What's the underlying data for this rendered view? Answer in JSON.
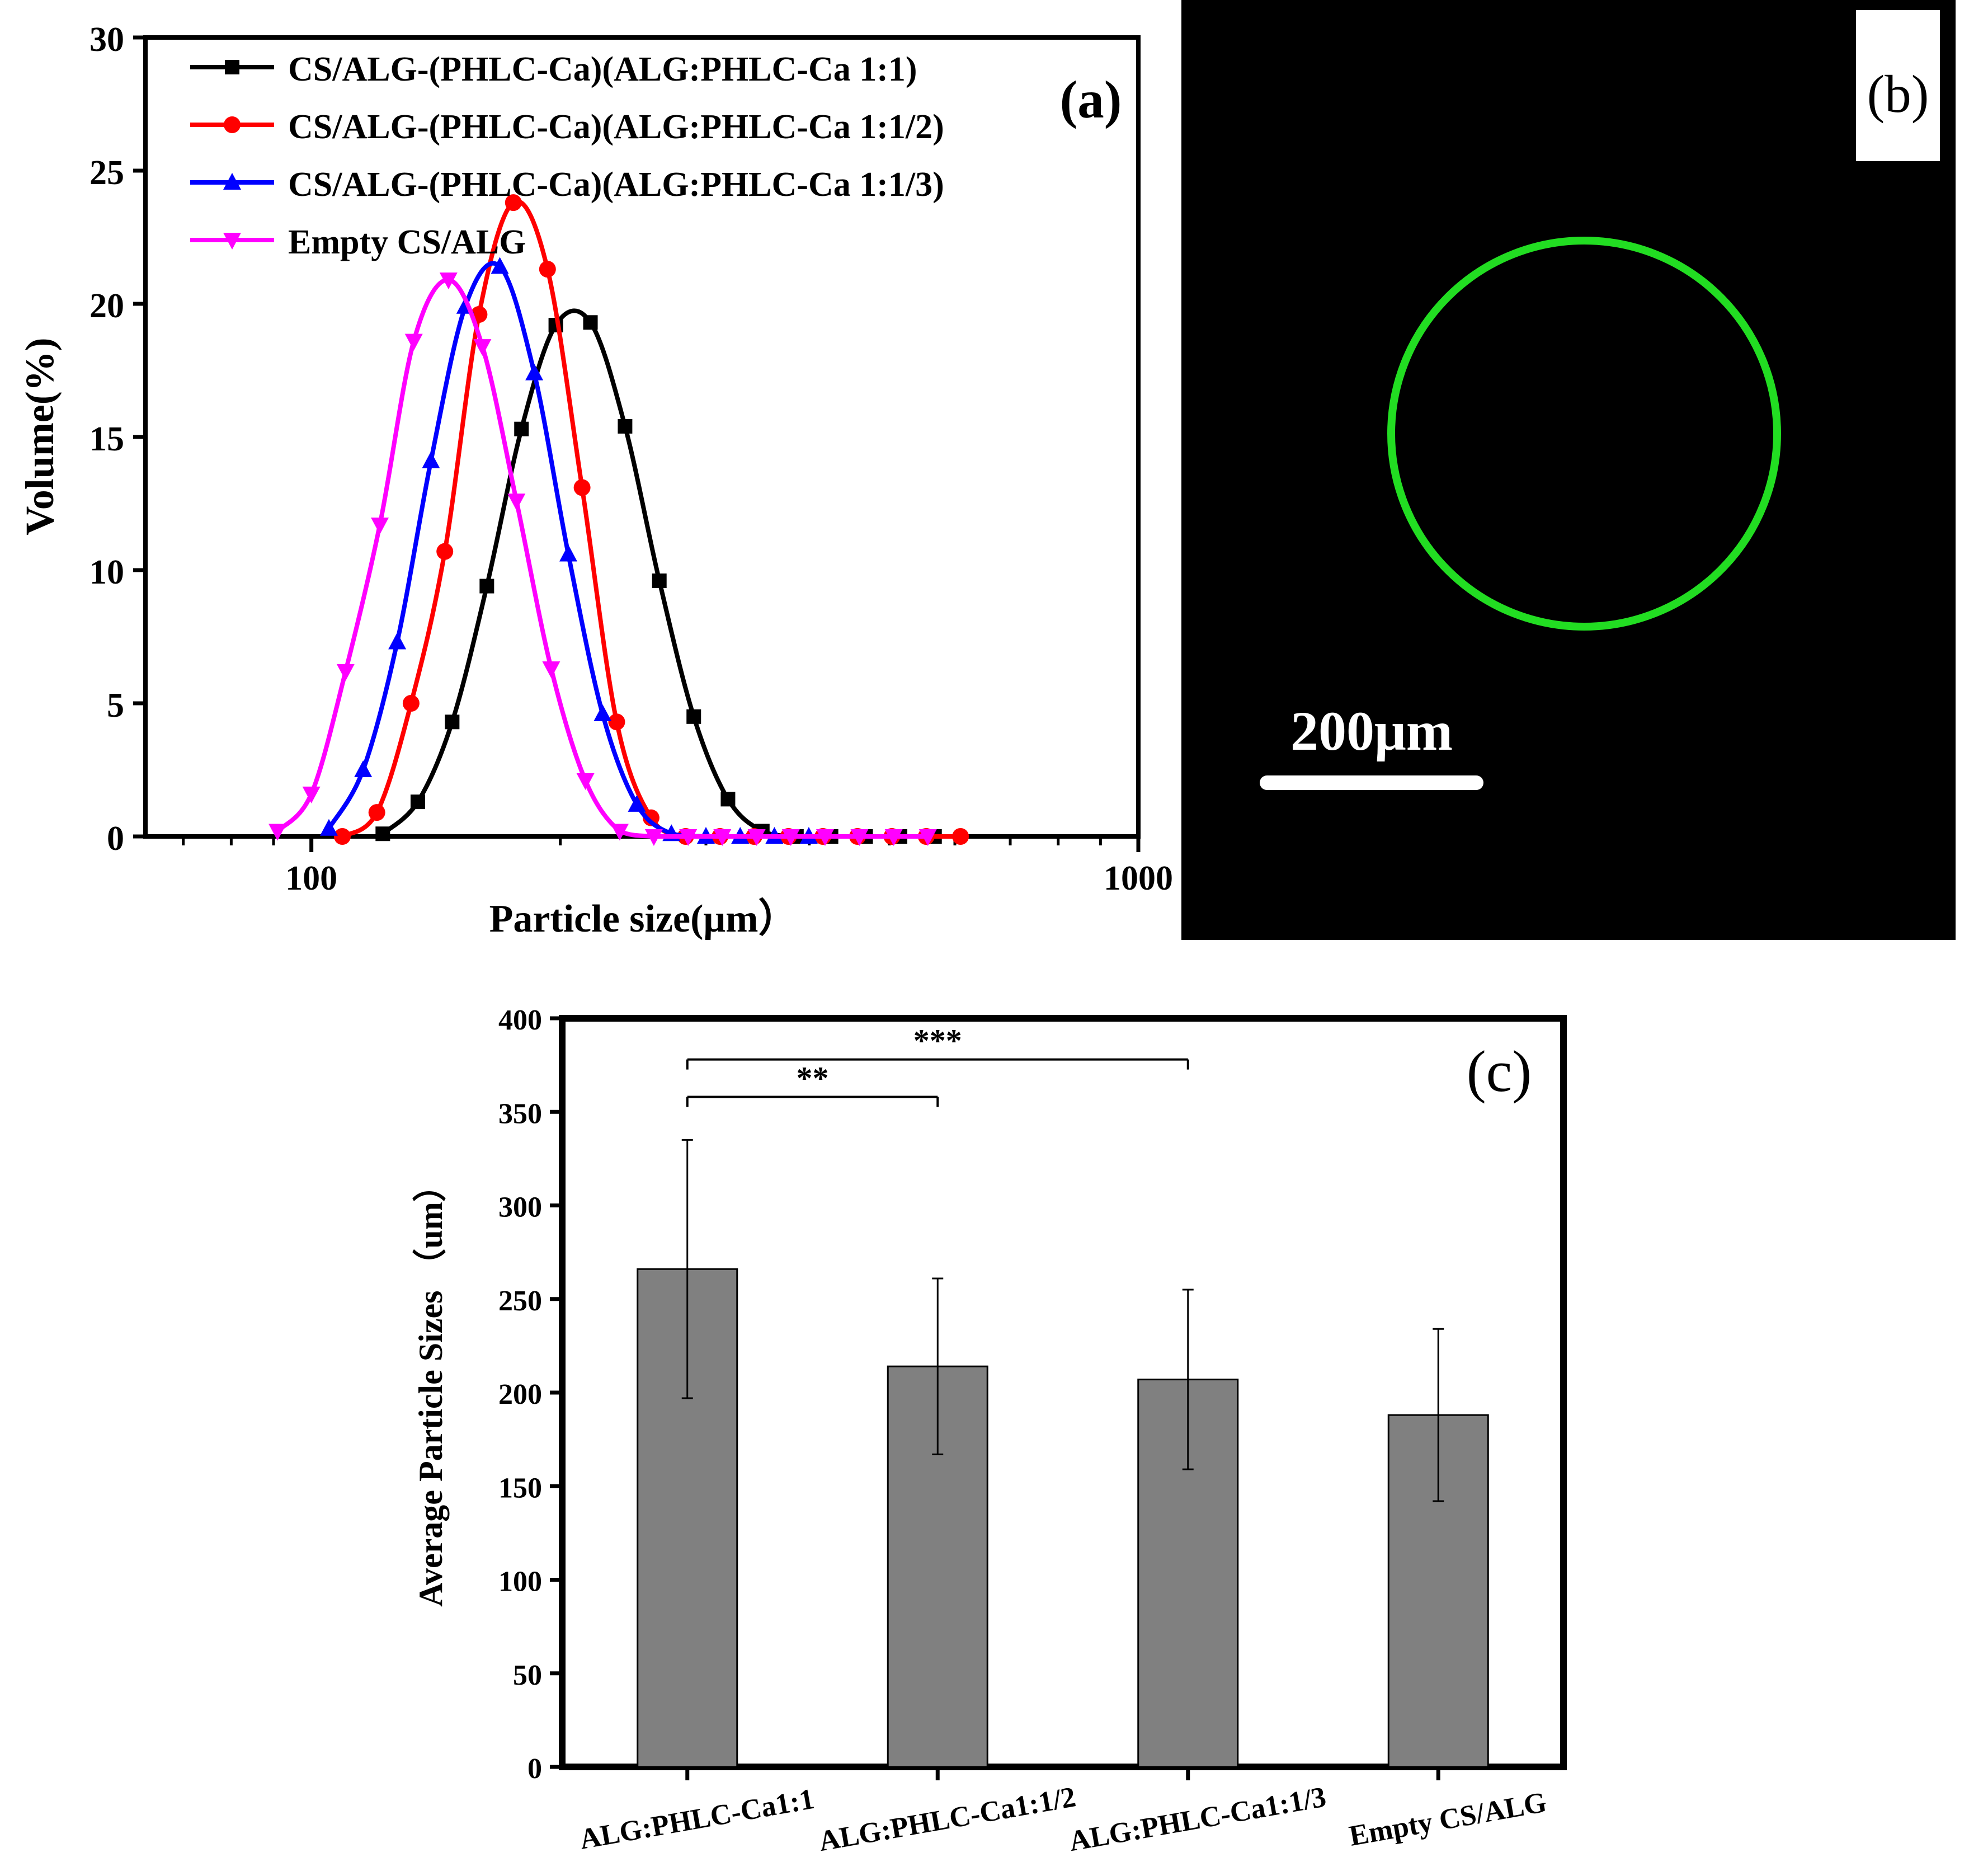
{
  "chart_data": [
    {
      "panel": "(a)",
      "type": "line",
      "xscale": "log",
      "xlim": [
        63,
        1000
      ],
      "ylim": [
        0,
        30
      ],
      "xlabel": "Particle size(μm）",
      "ylabel": "Volume(%)",
      "xticks": [
        {
          "value": 100,
          "label": "100"
        },
        {
          "value": 1000,
          "label": "1000"
        }
      ],
      "yticks": [
        0,
        5,
        10,
        15,
        20,
        25,
        30
      ],
      "legend_position": "top-left",
      "series": [
        {
          "name": "CS/ALG-(PHLC-Ca)(ALG:PHLC-Ca 1:1)",
          "color": "#000000",
          "marker": "square",
          "x": [
            122,
            134.5,
            148,
            163,
            179.5,
            197.5,
            217.5,
            239.5,
            263.5,
            290,
            319,
            351,
            386,
            425,
            468,
            515,
            567
          ],
          "y": [
            0.1,
            1.3,
            4.3,
            9.4,
            15.3,
            19.2,
            19.3,
            15.4,
            9.6,
            4.5,
            1.4,
            0.2,
            0.0,
            0.0,
            0.0,
            0.0,
            0.0
          ]
        },
        {
          "name": "CS/ALG-(PHLC-Ca)(ALG:PHLC-Ca 1:1/2)",
          "color": "#ff0000",
          "marker": "circle",
          "x": [
            109,
            120,
            132,
            145,
            159.5,
            175.5,
            193,
            212.5,
            234,
            257.5,
            283.5,
            312,
            343,
            377.5,
            415.5,
            457.5,
            503.5,
            554,
            609.5
          ],
          "y": [
            0.0,
            0.9,
            5.0,
            10.7,
            19.6,
            23.8,
            21.3,
            13.1,
            4.3,
            0.7,
            0.0,
            0.0,
            0.0,
            0.0,
            0.0,
            0.0,
            0.0,
            0.0,
            0.0
          ]
        },
        {
          "name": "CS/ALG-(PHLC-Ca)(ALG:PHLC-Ca 1:1/3)",
          "color": "#0000ff",
          "marker": "triangle-up",
          "x": [
            105,
            115.5,
            127,
            139.5,
            153.5,
            169,
            186,
            204.5,
            225,
            247.5,
            272.5,
            300,
            330,
            363,
            399.5
          ],
          "y": [
            0.3,
            2.5,
            7.3,
            14.1,
            19.9,
            21.4,
            17.4,
            10.6,
            4.6,
            1.2,
            0.1,
            0.0,
            0.0,
            0.0,
            0.0
          ]
        },
        {
          "name": "Empty CS/ALG",
          "color": "#ff00ff",
          "marker": "triangle-down",
          "x": [
            91,
            100,
            110,
            121,
            133,
            146.5,
            161,
            177,
            195,
            214.5,
            236,
            259.5,
            285.5,
            314,
            345.5,
            380,
            418,
            460,
            506,
            556.5
          ],
          "y": [
            0.2,
            1.6,
            6.2,
            11.7,
            18.6,
            20.9,
            18.4,
            12.6,
            6.3,
            2.1,
            0.2,
            0.0,
            0.0,
            0.0,
            0.0,
            0.0,
            0.0,
            0.0,
            0.0,
            0.0
          ]
        }
      ],
      "annotation": "(a)"
    },
    {
      "panel": "(b)",
      "type": "image",
      "description_label": "(b)",
      "scale_bar_label": "200μm",
      "ring_color": "#22dd22",
      "background_color": "#000000"
    },
    {
      "panel": "(c)",
      "type": "bar",
      "categories": [
        "ALG:PHLC-Ca1:1",
        "ALG:PHLC-Ca1:1/2",
        "ALG:PHLC-Ca1:1/3",
        "Empty CS/ALG"
      ],
      "values": [
        266,
        214,
        207,
        188
      ],
      "errors": [
        69,
        47,
        48,
        46
      ],
      "ylabel": "Average Particle Sizes （um）",
      "xlabel": "",
      "ylim": [
        0,
        400
      ],
      "yticks": [
        0,
        50,
        100,
        150,
        200,
        250,
        300,
        350,
        400
      ],
      "bar_color": "#808080",
      "significance": [
        {
          "from": 0,
          "to": 1,
          "label": "**",
          "y": 358
        },
        {
          "from": 0,
          "to": 2,
          "label": "***",
          "y": 378
        }
      ],
      "annotation": "(c)"
    }
  ]
}
